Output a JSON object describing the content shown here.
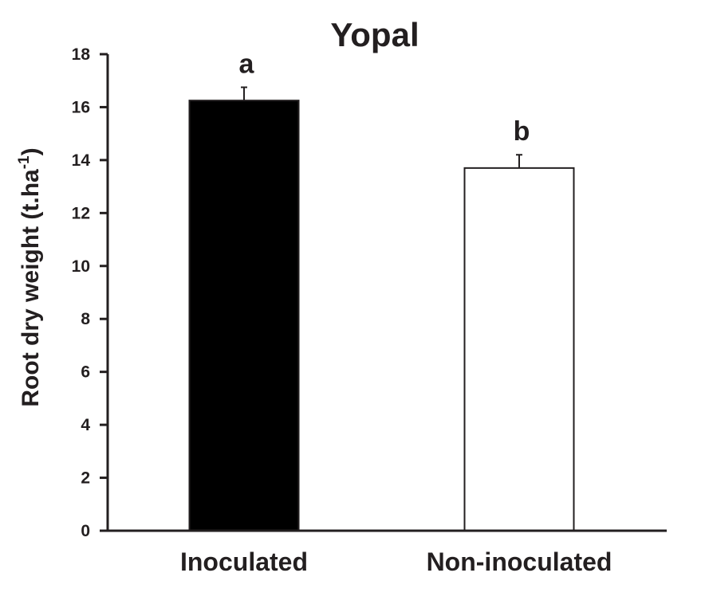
{
  "chart_data": {
    "type": "bar",
    "title": "Yopal",
    "ylabel": "Root dry weight (t.ha",
    "ylabel_sup": "-1",
    "ylabel_close": ")",
    "xlabel": "",
    "ylim": [
      0,
      18
    ],
    "yticks": [
      0,
      2,
      4,
      6,
      8,
      10,
      12,
      14,
      16,
      18
    ],
    "categories": [
      "Inoculated",
      "Non-inoculated"
    ],
    "values": [
      16.25,
      13.7
    ],
    "errors": [
      0.5,
      0.5
    ],
    "significance": [
      "a",
      "b"
    ],
    "bar_fill": [
      "#000000",
      "#ffffff"
    ],
    "bar_stroke": "#231f20",
    "grid": false,
    "legend": "none"
  }
}
